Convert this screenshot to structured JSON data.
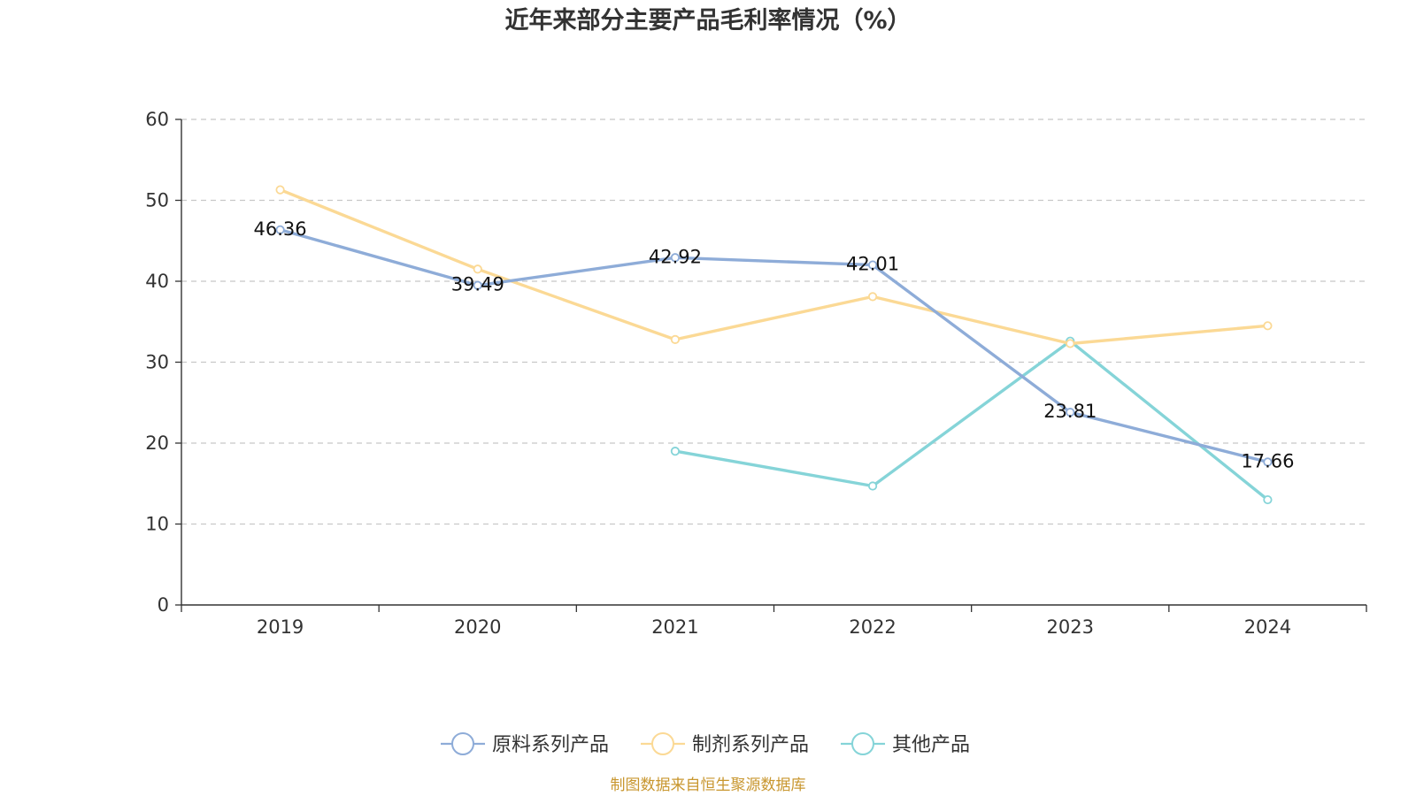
{
  "chart_data": {
    "type": "line",
    "title": "近年来部分主要产品毛利率情况（%）",
    "xlabel": "",
    "ylabel": "",
    "categories": [
      "2019",
      "2020",
      "2021",
      "2022",
      "2023",
      "2024"
    ],
    "ylim": [
      0,
      60
    ],
    "yticks": [
      0,
      10,
      20,
      30,
      40,
      50,
      60
    ],
    "grid": true,
    "legend_position": "bottom",
    "series": [
      {
        "name": "原料系列产品",
        "color": "#8eacd8",
        "values": [
          46.36,
          39.49,
          42.92,
          42.01,
          23.81,
          17.66
        ],
        "labels": [
          "46.36",
          "39.49",
          "42.92",
          "42.01",
          "23.81",
          "17.66"
        ]
      },
      {
        "name": "制剂系列产品",
        "color": "#fbd995",
        "values": [
          51.3,
          41.5,
          32.8,
          38.1,
          32.3,
          34.5
        ]
      },
      {
        "name": "其他产品",
        "color": "#85d4d8",
        "values": [
          null,
          null,
          19.0,
          14.7,
          32.6,
          13.0
        ]
      }
    ]
  },
  "source_text": "制图数据来自恒生聚源数据库",
  "source_color": "#c8962e"
}
